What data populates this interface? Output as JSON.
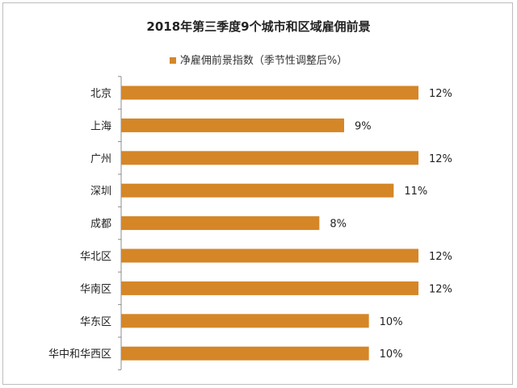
{
  "chart_data": {
    "type": "bar",
    "orientation": "horizontal",
    "title": "2018年第三季度9个城市和区域雇佣前景",
    "categories": [
      "北京",
      "上海",
      "广州",
      "深圳",
      "成都",
      "华北区",
      "华南区",
      "华东区",
      "华中和华西区"
    ],
    "series": [
      {
        "name": "净雇佣前景指数（季节性调整后%）",
        "values": [
          12,
          9,
          12,
          11,
          8,
          12,
          12,
          10,
          10
        ],
        "labels": [
          "12%",
          "9%",
          "12%",
          "11%",
          "8%",
          "12%",
          "12%",
          "10%",
          "10%"
        ]
      }
    ],
    "xlim": [
      0,
      12
    ],
    "legend_position": "top",
    "grid": false,
    "colors": {
      "bar": "#D58627"
    }
  }
}
